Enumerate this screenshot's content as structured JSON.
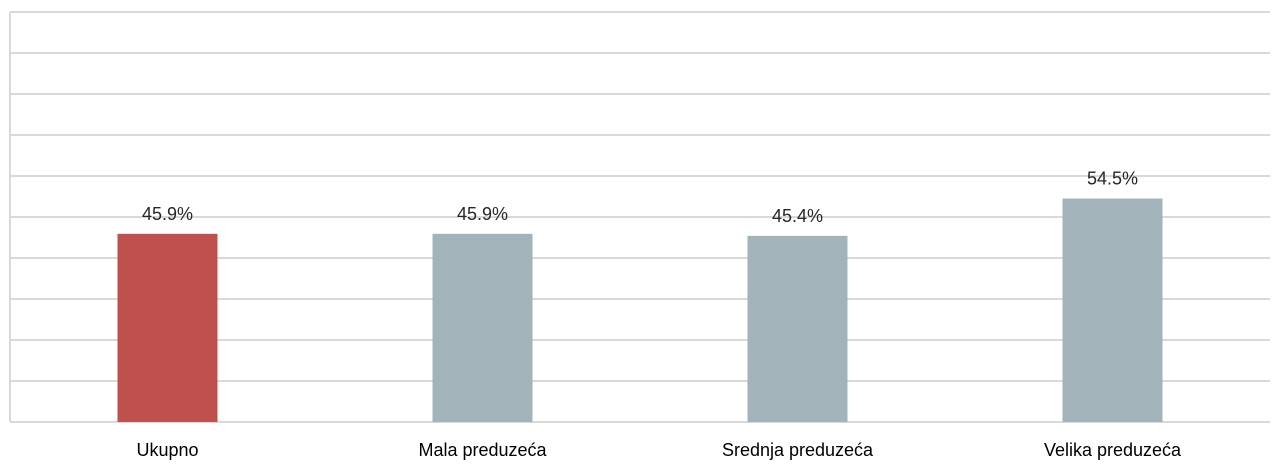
{
  "chart_data": {
    "type": "bar",
    "categories": [
      "Ukupno",
      "Mala preduzeća",
      "Srednja preduzeća",
      "Velika preduzeća"
    ],
    "values": [
      45.9,
      45.9,
      45.4,
      54.5
    ],
    "value_labels": [
      "45.9%",
      "45.9%",
      "45.4%",
      "54.5%"
    ],
    "title": "",
    "xlabel": "",
    "ylabel": "",
    "ylim": [
      0,
      100
    ],
    "grid": true,
    "legend": "none",
    "colors": {
      "highlight": "#c0504d",
      "default": "#a2b3ba",
      "grid": "#d9d9d9",
      "label": "#262626"
    },
    "bar_colors": [
      "#c0504d",
      "#a2b3ba",
      "#a2b3ba",
      "#a2b3ba"
    ]
  }
}
